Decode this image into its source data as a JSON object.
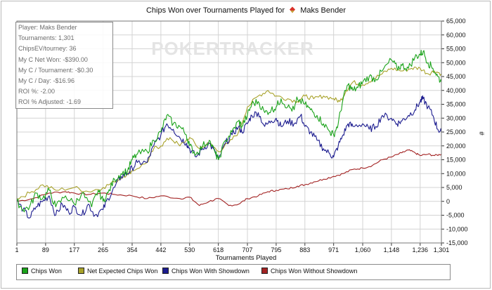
{
  "title_prefix": "Chips Won over Tournaments Played for",
  "player_name": "Maks Bender",
  "watermark": "POKERTRACKER",
  "stats": [
    "Player: Maks Bender",
    "Tournaments: 1,301",
    "ChipsEV/tourney: 36",
    "My C Net Won: -$390.00",
    "My C / Tournament: -$0.30",
    "My C / Day: -$16.96",
    "ROI %: -2.00",
    "ROI % Adjusted: -1.69"
  ],
  "colors": {
    "chips_won": "#1aa31a",
    "net_expected": "#a8a22a",
    "with_showdown": "#1c1c8f",
    "without_showdown": "#a32323",
    "grid": "#d3d3d3"
  },
  "chart_data": {
    "type": "line",
    "xlabel": "Tournaments Played",
    "ylabel": "#",
    "xlim": [
      1,
      1301
    ],
    "ylim": [
      -15000,
      65000
    ],
    "x_ticks": [
      1,
      89,
      177,
      265,
      354,
      442,
      530,
      618,
      707,
      795,
      883,
      971,
      1060,
      1148,
      1236,
      1301
    ],
    "x_tick_labels": [
      "1",
      "89",
      "177",
      "265",
      "354",
      "442",
      "530",
      "618",
      "707",
      "795",
      "883",
      "971",
      "1,060",
      "1,148",
      "1,236",
      "1,301"
    ],
    "y_ticks": [
      -15000,
      -10000,
      -5000,
      0,
      5000,
      10000,
      15000,
      20000,
      25000,
      30000,
      35000,
      40000,
      45000,
      50000,
      55000,
      60000,
      65000
    ],
    "y_tick_labels": [
      "-15,000",
      "-10,000",
      "-5,000",
      "0",
      "5,000",
      "10,000",
      "15,000",
      "20,000",
      "25,000",
      "30,000",
      "35,000",
      "40,000",
      "45,000",
      "50,000",
      "55,000",
      "60,000",
      "65,000"
    ],
    "legend_position": "bottom",
    "grid": true,
    "series": [
      {
        "name": "Chips Won",
        "color": "#1aa31a",
        "points": [
          [
            1,
            0
          ],
          [
            20,
            -3000
          ],
          [
            40,
            -2000
          ],
          [
            60,
            3000
          ],
          [
            80,
            1000
          ],
          [
            100,
            4000
          ],
          [
            120,
            -2000
          ],
          [
            150,
            2000
          ],
          [
            177,
            -1000
          ],
          [
            200,
            3000
          ],
          [
            230,
            -2000
          ],
          [
            250,
            4000
          ],
          [
            265,
            0
          ],
          [
            280,
            3000
          ],
          [
            300,
            8000
          ],
          [
            320,
            10000
          ],
          [
            340,
            11000
          ],
          [
            354,
            15000
          ],
          [
            370,
            17000
          ],
          [
            400,
            18000
          ],
          [
            420,
            22000
          ],
          [
            442,
            25000
          ],
          [
            460,
            31000
          ],
          [
            480,
            28000
          ],
          [
            500,
            27000
          ],
          [
            520,
            24000
          ],
          [
            530,
            20000
          ],
          [
            550,
            17000
          ],
          [
            570,
            20000
          ],
          [
            590,
            22000
          ],
          [
            610,
            17000
          ],
          [
            618,
            15000
          ],
          [
            640,
            22000
          ],
          [
            660,
            25000
          ],
          [
            680,
            29000
          ],
          [
            690,
            27000
          ],
          [
            707,
            31000
          ],
          [
            720,
            35000
          ],
          [
            740,
            36000
          ],
          [
            760,
            32000
          ],
          [
            780,
            33000
          ],
          [
            795,
            34000
          ],
          [
            810,
            37000
          ],
          [
            830,
            34000
          ],
          [
            850,
            33000
          ],
          [
            860,
            37000
          ],
          [
            883,
            35000
          ],
          [
            900,
            33000
          ],
          [
            920,
            31000
          ],
          [
            940,
            28000
          ],
          [
            960,
            25000
          ],
          [
            971,
            24000
          ],
          [
            985,
            28000
          ],
          [
            1000,
            37000
          ],
          [
            1015,
            42000
          ],
          [
            1030,
            40000
          ],
          [
            1045,
            41000
          ],
          [
            1060,
            43000
          ],
          [
            1080,
            45000
          ],
          [
            1100,
            44000
          ],
          [
            1120,
            47000
          ],
          [
            1148,
            51000
          ],
          [
            1165,
            48000
          ],
          [
            1180,
            49000
          ],
          [
            1200,
            48000
          ],
          [
            1220,
            52000
          ],
          [
            1236,
            53000
          ],
          [
            1245,
            54000
          ],
          [
            1260,
            50000
          ],
          [
            1275,
            48000
          ],
          [
            1290,
            45000
          ],
          [
            1301,
            43000
          ]
        ]
      },
      {
        "name": "Net Expected Chips Won",
        "color": "#a8a22a",
        "points": [
          [
            1,
            1000
          ],
          [
            40,
            3000
          ],
          [
            80,
            6000
          ],
          [
            120,
            4000
          ],
          [
            177,
            5000
          ],
          [
            220,
            3500
          ],
          [
            265,
            5000
          ],
          [
            300,
            7000
          ],
          [
            340,
            10000
          ],
          [
            354,
            11000
          ],
          [
            400,
            14000
          ],
          [
            420,
            19000
          ],
          [
            442,
            20000
          ],
          [
            470,
            23000
          ],
          [
            500,
            20000
          ],
          [
            530,
            23000
          ],
          [
            560,
            19000
          ],
          [
            590,
            21000
          ],
          [
            618,
            18000
          ],
          [
            650,
            21000
          ],
          [
            680,
            25000
          ],
          [
            707,
            34000
          ],
          [
            740,
            38000
          ],
          [
            770,
            40000
          ],
          [
            795,
            38000
          ],
          [
            830,
            37000
          ],
          [
            860,
            36000
          ],
          [
            883,
            38000
          ],
          [
            910,
            37000
          ],
          [
            940,
            38000
          ],
          [
            971,
            37000
          ],
          [
            990,
            36000
          ],
          [
            1010,
            40000
          ],
          [
            1030,
            43000
          ],
          [
            1060,
            42000
          ],
          [
            1090,
            44000
          ],
          [
            1120,
            46000
          ],
          [
            1148,
            48000
          ],
          [
            1180,
            47000
          ],
          [
            1210,
            48000
          ],
          [
            1236,
            48000
          ],
          [
            1260,
            46000
          ],
          [
            1280,
            47000
          ],
          [
            1301,
            46000
          ]
        ]
      },
      {
        "name": "Chips Won With Showdown",
        "color": "#1c1c8f",
        "points": [
          [
            1,
            0
          ],
          [
            20,
            -3000
          ],
          [
            40,
            -6000
          ],
          [
            60,
            -2000
          ],
          [
            80,
            0
          ],
          [
            100,
            2000
          ],
          [
            120,
            -5000
          ],
          [
            140,
            -1000
          ],
          [
            160,
            -4000
          ],
          [
            177,
            -2000
          ],
          [
            200,
            -5000
          ],
          [
            220,
            -1000
          ],
          [
            240,
            -5000
          ],
          [
            265,
            -3000
          ],
          [
            280,
            1000
          ],
          [
            300,
            5000
          ],
          [
            320,
            9000
          ],
          [
            340,
            10000
          ],
          [
            354,
            12000
          ],
          [
            370,
            14000
          ],
          [
            400,
            14000
          ],
          [
            420,
            20000
          ],
          [
            442,
            24000
          ],
          [
            460,
            28000
          ],
          [
            480,
            26000
          ],
          [
            500,
            23000
          ],
          [
            520,
            21000
          ],
          [
            530,
            19000
          ],
          [
            550,
            16000
          ],
          [
            570,
            19000
          ],
          [
            590,
            21000
          ],
          [
            610,
            17000
          ],
          [
            618,
            15000
          ],
          [
            640,
            21000
          ],
          [
            660,
            24000
          ],
          [
            680,
            27000
          ],
          [
            690,
            25000
          ],
          [
            707,
            28000
          ],
          [
            720,
            31000
          ],
          [
            740,
            32000
          ],
          [
            760,
            27000
          ],
          [
            780,
            29000
          ],
          [
            795,
            30000
          ],
          [
            810,
            27000
          ],
          [
            830,
            29000
          ],
          [
            850,
            28000
          ],
          [
            870,
            31000
          ],
          [
            883,
            27000
          ],
          [
            900,
            25000
          ],
          [
            920,
            22000
          ],
          [
            940,
            19000
          ],
          [
            960,
            17000
          ],
          [
            971,
            16000
          ],
          [
            985,
            20000
          ],
          [
            1000,
            24000
          ],
          [
            1015,
            28000
          ],
          [
            1030,
            27000
          ],
          [
            1060,
            28000
          ],
          [
            1080,
            26000
          ],
          [
            1100,
            27000
          ],
          [
            1120,
            31000
          ],
          [
            1148,
            30000
          ],
          [
            1165,
            28000
          ],
          [
            1180,
            29000
          ],
          [
            1200,
            31000
          ],
          [
            1220,
            33000
          ],
          [
            1236,
            36000
          ],
          [
            1245,
            37000
          ],
          [
            1260,
            34000
          ],
          [
            1275,
            31000
          ],
          [
            1290,
            26000
          ],
          [
            1301,
            25000
          ]
        ]
      },
      {
        "name": "Chips Won Without Showdown",
        "color": "#a32323",
        "points": [
          [
            1,
            0
          ],
          [
            50,
            1000
          ],
          [
            100,
            3000
          ],
          [
            150,
            3500
          ],
          [
            177,
            3000
          ],
          [
            220,
            2500
          ],
          [
            265,
            3000
          ],
          [
            300,
            2500
          ],
          [
            354,
            2000
          ],
          [
            400,
            1000
          ],
          [
            442,
            2000
          ],
          [
            500,
            1000
          ],
          [
            530,
            1500
          ],
          [
            560,
            -1500
          ],
          [
            590,
            0
          ],
          [
            618,
            1000
          ],
          [
            650,
            -1500
          ],
          [
            680,
            -1000
          ],
          [
            707,
            1000
          ],
          [
            740,
            2000
          ],
          [
            770,
            3500
          ],
          [
            795,
            4000
          ],
          [
            830,
            4500
          ],
          [
            860,
            5500
          ],
          [
            883,
            6000
          ],
          [
            910,
            7000
          ],
          [
            940,
            8000
          ],
          [
            971,
            9000
          ],
          [
            1000,
            10000
          ],
          [
            1030,
            11500
          ],
          [
            1060,
            12000
          ],
          [
            1090,
            13000
          ],
          [
            1120,
            15000
          ],
          [
            1148,
            16000
          ],
          [
            1180,
            17500
          ],
          [
            1200,
            18500
          ],
          [
            1220,
            17500
          ],
          [
            1236,
            16500
          ],
          [
            1260,
            17000
          ],
          [
            1280,
            16500
          ],
          [
            1301,
            17000
          ]
        ]
      }
    ]
  }
}
